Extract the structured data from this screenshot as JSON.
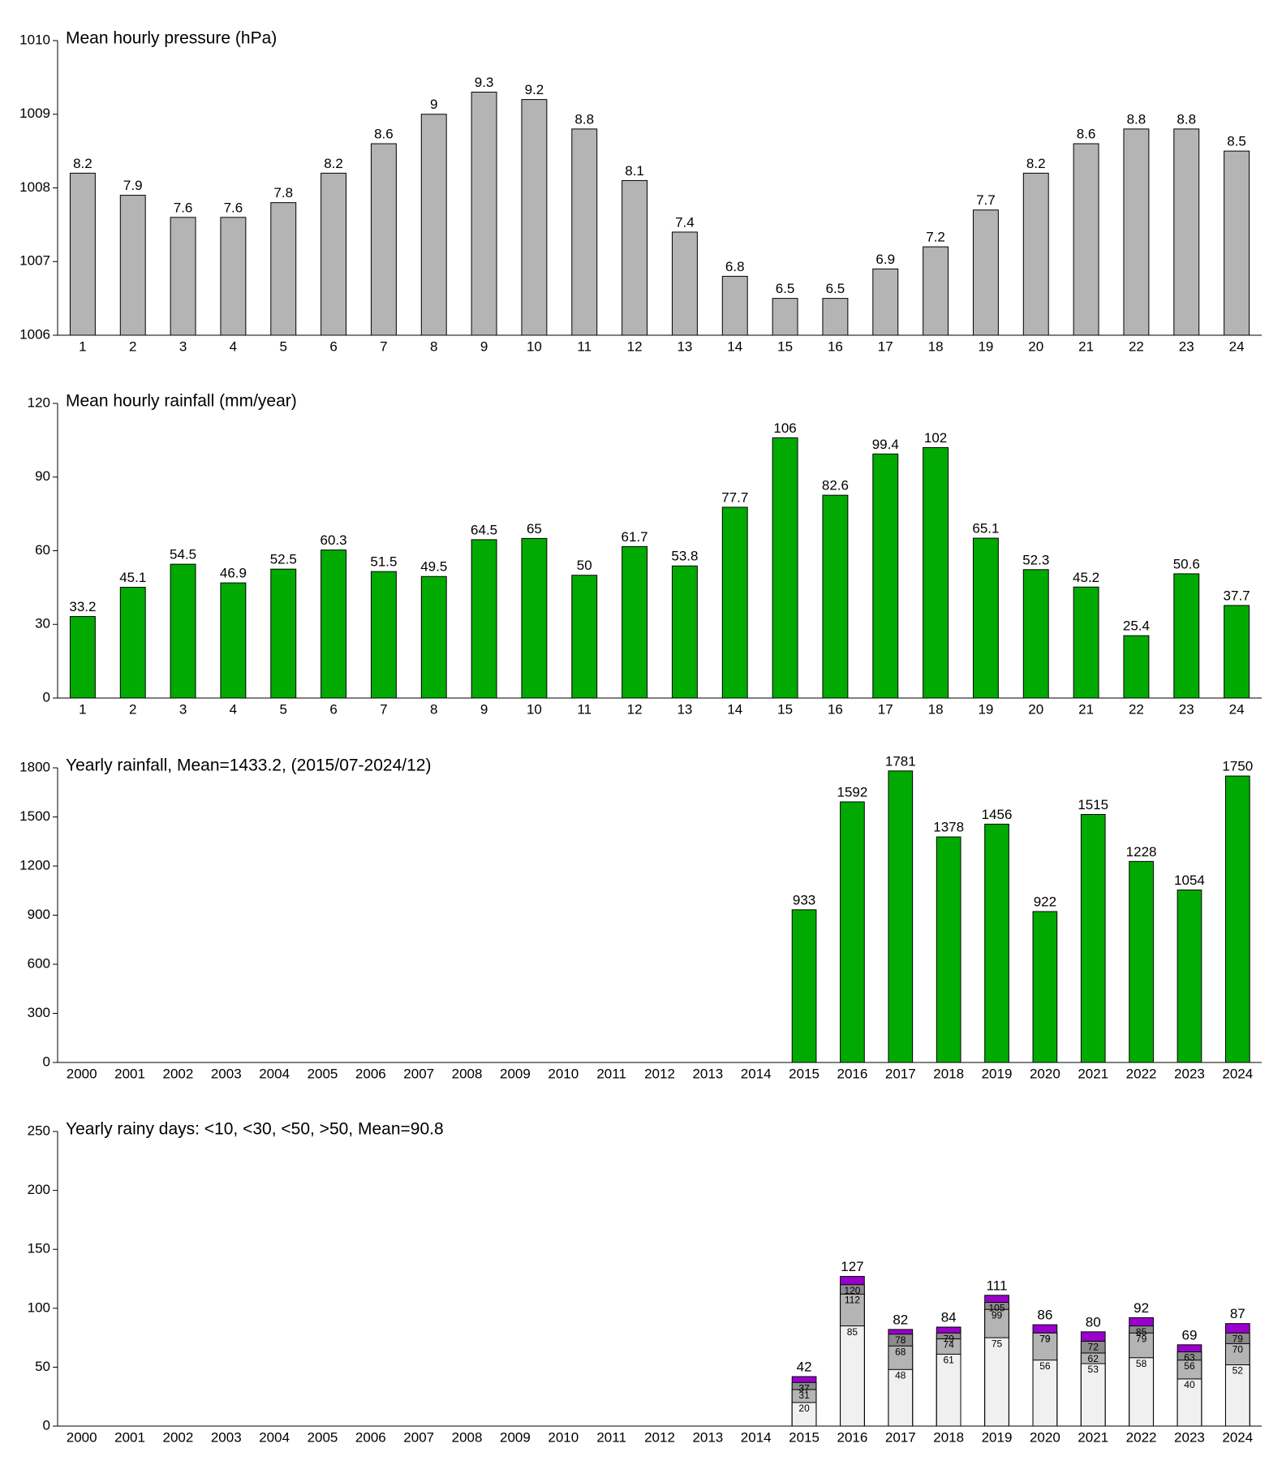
{
  "chart_data": [
    {
      "type": "bar",
      "title": "Mean hourly pressure (hPa)",
      "categories": [
        "1",
        "2",
        "3",
        "4",
        "5",
        "6",
        "7",
        "8",
        "9",
        "10",
        "11",
        "12",
        "13",
        "14",
        "15",
        "16",
        "17",
        "18",
        "19",
        "20",
        "21",
        "22",
        "23",
        "24"
      ],
      "values": [
        1008.2,
        1007.9,
        1007.6,
        1007.6,
        1007.8,
        1008.2,
        1008.6,
        1009,
        1009.3,
        1009.2,
        1008.8,
        1008.1,
        1007.4,
        1006.8,
        1006.5,
        1006.5,
        1006.9,
        1007.2,
        1007.7,
        1008.2,
        1008.6,
        1008.8,
        1008.8,
        1008.5
      ],
      "value_labels": [
        "8.2",
        "7.9",
        "7.6",
        "7.6",
        "7.8",
        "8.2",
        "8.6",
        "9",
        "9.3",
        "9.2",
        "8.8",
        "8.1",
        "7.4",
        "6.8",
        "6.5",
        "6.5",
        "6.9",
        "7.2",
        "7.7",
        "8.2",
        "8.6",
        "8.8",
        "8.8",
        "8.5"
      ],
      "color": "#b4b4b4",
      "ylim": [
        1006,
        1010
      ],
      "yticks": [
        1006,
        1007,
        1008,
        1009,
        1010
      ],
      "grid": false
    },
    {
      "type": "bar",
      "title": "Mean hourly rainfall (mm/year)",
      "categories": [
        "1",
        "2",
        "3",
        "4",
        "5",
        "6",
        "7",
        "8",
        "9",
        "10",
        "11",
        "12",
        "13",
        "14",
        "15",
        "16",
        "17",
        "18",
        "19",
        "20",
        "21",
        "22",
        "23",
        "24"
      ],
      "values": [
        33.2,
        45.1,
        54.5,
        46.9,
        52.5,
        60.3,
        51.5,
        49.5,
        64.5,
        65,
        50,
        61.7,
        53.8,
        77.7,
        106,
        82.6,
        99.4,
        102,
        65.1,
        52.3,
        45.2,
        25.4,
        50.6,
        37.7
      ],
      "color": "#00aa00",
      "ylim": [
        0,
        120
      ],
      "yticks": [
        0,
        30,
        60,
        90,
        120
      ],
      "grid": false
    },
    {
      "type": "bar",
      "title": "Yearly rainfall, Mean=1433.2, (2015/07-2024/12)",
      "categories": [
        "2000",
        "2001",
        "2002",
        "2003",
        "2004",
        "2005",
        "2006",
        "2007",
        "2008",
        "2009",
        "2010",
        "2011",
        "2012",
        "2013",
        "2014",
        "2015",
        "2016",
        "2017",
        "2018",
        "2019",
        "2020",
        "2021",
        "2022",
        "2023",
        "2024"
      ],
      "values": [
        null,
        null,
        null,
        null,
        null,
        null,
        null,
        null,
        null,
        null,
        null,
        null,
        null,
        null,
        null,
        933,
        1592,
        1781,
        1378,
        1456,
        922,
        1515,
        1228,
        1054,
        1750
      ],
      "color": "#00aa00",
      "ylim": [
        0,
        1800
      ],
      "yticks": [
        0,
        300,
        600,
        900,
        1200,
        1500,
        1800
      ],
      "grid": false
    },
    {
      "type": "bar",
      "layout": "overlay",
      "title": "Yearly rainy days: <10, <30, <50, >50, Mean=90.8",
      "categories": [
        "2000",
        "2001",
        "2002",
        "2003",
        "2004",
        "2005",
        "2006",
        "2007",
        "2008",
        "2009",
        "2010",
        "2011",
        "2012",
        "2013",
        "2014",
        "2015",
        "2016",
        "2017",
        "2018",
        "2019",
        "2020",
        "2021",
        "2022",
        "2023",
        "2024"
      ],
      "series": [
        {
          "color": "#f0f0f0",
          "values": [
            null,
            null,
            null,
            null,
            null,
            null,
            null,
            null,
            null,
            null,
            null,
            null,
            null,
            null,
            null,
            20,
            85,
            48,
            61,
            75,
            56,
            53,
            58,
            40,
            52
          ]
        },
        {
          "color": "#b4b4b4",
          "values": [
            null,
            null,
            null,
            null,
            null,
            null,
            null,
            null,
            null,
            null,
            null,
            null,
            null,
            null,
            null,
            31,
            112,
            68,
            74,
            99,
            79,
            62,
            79,
            56,
            70
          ]
        },
        {
          "color": "#8c8c8c",
          "values": [
            null,
            null,
            null,
            null,
            null,
            null,
            null,
            null,
            null,
            null,
            null,
            null,
            null,
            null,
            null,
            37,
            120,
            78,
            79,
            105,
            79,
            72,
            85,
            63,
            79
          ]
        },
        {
          "color": "#9900cc",
          "values": [
            null,
            null,
            null,
            null,
            null,
            null,
            null,
            null,
            null,
            null,
            null,
            null,
            null,
            null,
            null,
            42,
            127,
            82,
            84,
            111,
            86,
            80,
            92,
            69,
            87
          ]
        }
      ],
      "ylim": [
        0,
        250
      ],
      "yticks": [
        0,
        50,
        100,
        150,
        200,
        250
      ],
      "grid": false
    }
  ]
}
